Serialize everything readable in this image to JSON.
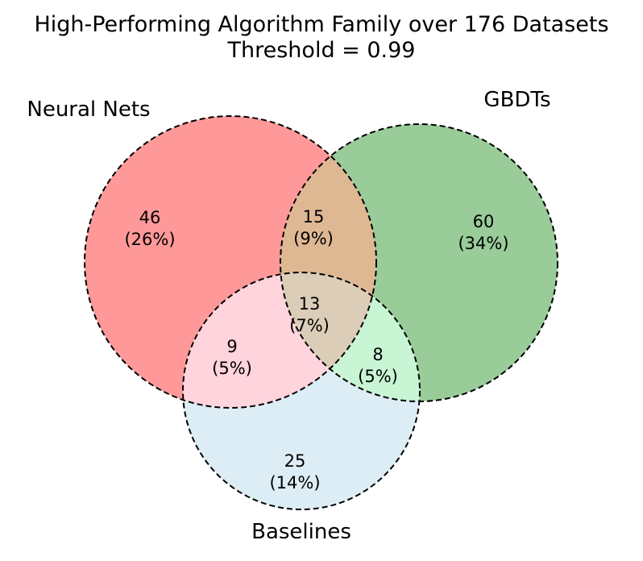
{
  "title": {
    "line1": "High-Performing Algorithm Family over 176 Datasets",
    "line2": "Threshold = 0.99"
  },
  "sets": {
    "neural_nets": {
      "label": "Neural Nets",
      "color": "#ff9999"
    },
    "gbdts": {
      "label": "GBDTs",
      "color": "#99cc99"
    },
    "baselines": {
      "label": "Baselines",
      "color": "#ddedf5"
    }
  },
  "regions": {
    "nn_only": {
      "count": "46",
      "percent": "(26%)",
      "color": "#ff9999"
    },
    "gbdt_only": {
      "count": "60",
      "percent": "(34%)",
      "color": "#99cc99"
    },
    "baselines_only": {
      "count": "25",
      "percent": "(14%)",
      "color": "#ddedf5"
    },
    "nn_gbdt": {
      "count": "15",
      "percent": "(9%)",
      "color": "#deb893"
    },
    "nn_baselines": {
      "count": "9",
      "percent": "(5%)",
      "color": "#ffd4dc"
    },
    "gbdt_baselines": {
      "count": "8",
      "percent": "(5%)",
      "color": "#c8f5d4"
    },
    "all_three": {
      "count": "13",
      "percent": "(7%)",
      "color": "#dccdb8"
    }
  }
}
